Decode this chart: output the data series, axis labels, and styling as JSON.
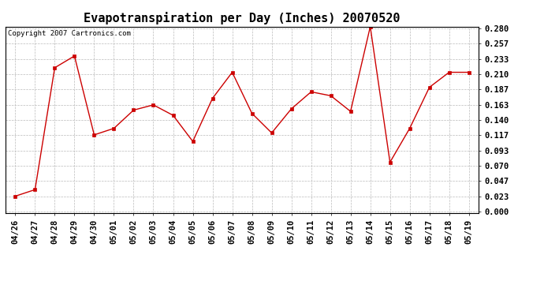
{
  "title": "Evapotranspiration per Day (Inches) 20070520",
  "copyright_text": "Copyright 2007 Cartronics.com",
  "x_labels": [
    "04/26",
    "04/27",
    "04/28",
    "04/29",
    "04/30",
    "05/01",
    "05/02",
    "05/03",
    "05/04",
    "05/05",
    "05/06",
    "05/07",
    "05/08",
    "05/09",
    "05/10",
    "05/11",
    "05/12",
    "05/13",
    "05/14",
    "05/15",
    "05/16",
    "05/17",
    "05/18",
    "05/19"
  ],
  "y_values": [
    0.023,
    0.033,
    0.22,
    0.238,
    0.117,
    0.127,
    0.155,
    0.163,
    0.147,
    0.107,
    0.173,
    0.213,
    0.15,
    0.12,
    0.157,
    0.183,
    0.177,
    0.153,
    0.283,
    0.075,
    0.127,
    0.19,
    0.213,
    0.213
  ],
  "line_color": "#cc0000",
  "marker": "s",
  "marker_size": 2.5,
  "ylim_min": 0.0,
  "ylim_max": 0.28,
  "yticks": [
    0.0,
    0.023,
    0.047,
    0.07,
    0.093,
    0.117,
    0.14,
    0.163,
    0.187,
    0.21,
    0.233,
    0.257,
    0.28
  ],
  "background_color": "#ffffff",
  "plot_bg_color": "#ffffff",
  "grid_color": "#bbbbbb",
  "title_fontsize": 11,
  "copyright_fontsize": 6.5,
  "tick_fontsize": 7.5,
  "linewidth": 1.0
}
